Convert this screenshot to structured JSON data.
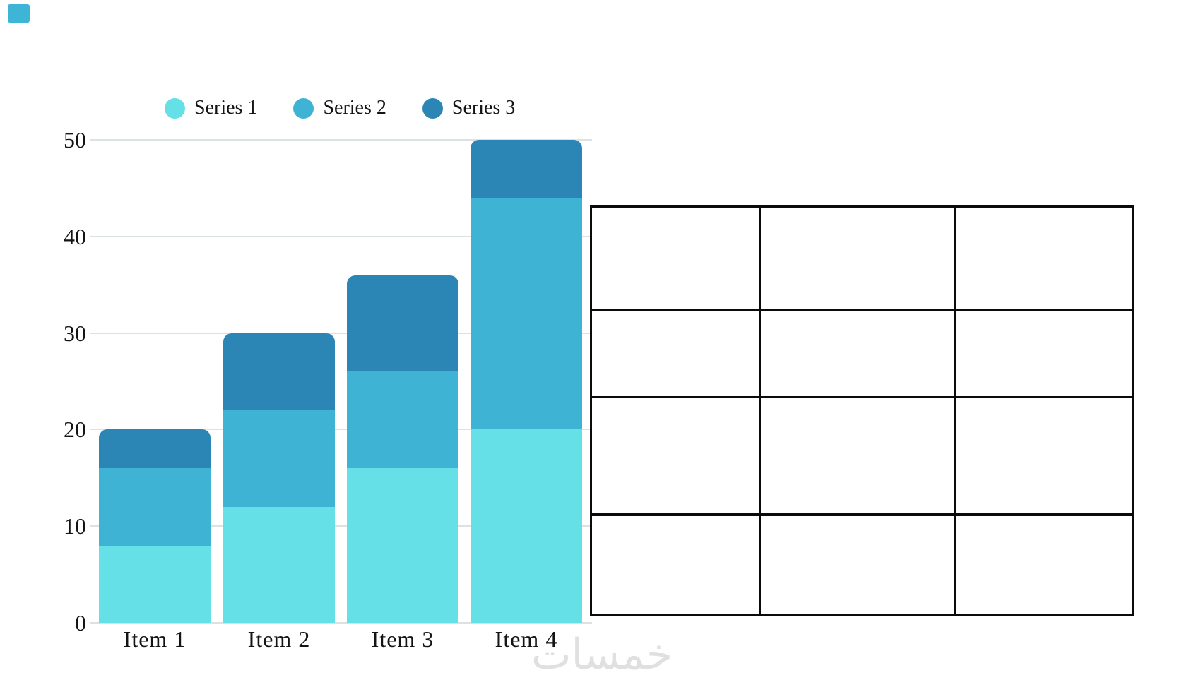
{
  "page": {
    "kind": "stacked-bar-chart-with-empty-table-graphic",
    "background": "#ffffff"
  },
  "corner_swatch": {
    "color": "#3eb5d7"
  },
  "chart_data": {
    "type": "bar",
    "stacked": true,
    "title": "",
    "xlabel": "",
    "ylabel": "",
    "categories": [
      "Item 1",
      "Item 2",
      "Item 3",
      "Item 4"
    ],
    "series": [
      {
        "name": "Series 1",
        "color": "#64e0e6",
        "values": [
          8,
          12,
          16,
          20
        ]
      },
      {
        "name": "Series 2",
        "color": "#3fb3d3",
        "values": [
          8,
          10,
          10,
          24
        ]
      },
      {
        "name": "Series 3",
        "color": "#2c86b5",
        "values": [
          4,
          8,
          10,
          6
        ]
      }
    ],
    "totals": [
      20,
      30,
      36,
      50
    ],
    "y_ticks": [
      0,
      10,
      20,
      30,
      40,
      50
    ],
    "ylim": [
      0,
      50
    ],
    "grid": "horizontal",
    "gridline_color": "#dce1e4",
    "axis_text_color": "#141414",
    "legend_position": "top"
  },
  "table": {
    "rows": 4,
    "cols": 3,
    "border_color": "#0b0b0b",
    "cells": [
      [
        "",
        "",
        ""
      ],
      [
        "",
        "",
        ""
      ],
      [
        "",
        "",
        ""
      ],
      [
        "",
        "",
        ""
      ]
    ]
  },
  "watermark": {
    "text": "خمسات",
    "color": "#e0e0e0"
  }
}
